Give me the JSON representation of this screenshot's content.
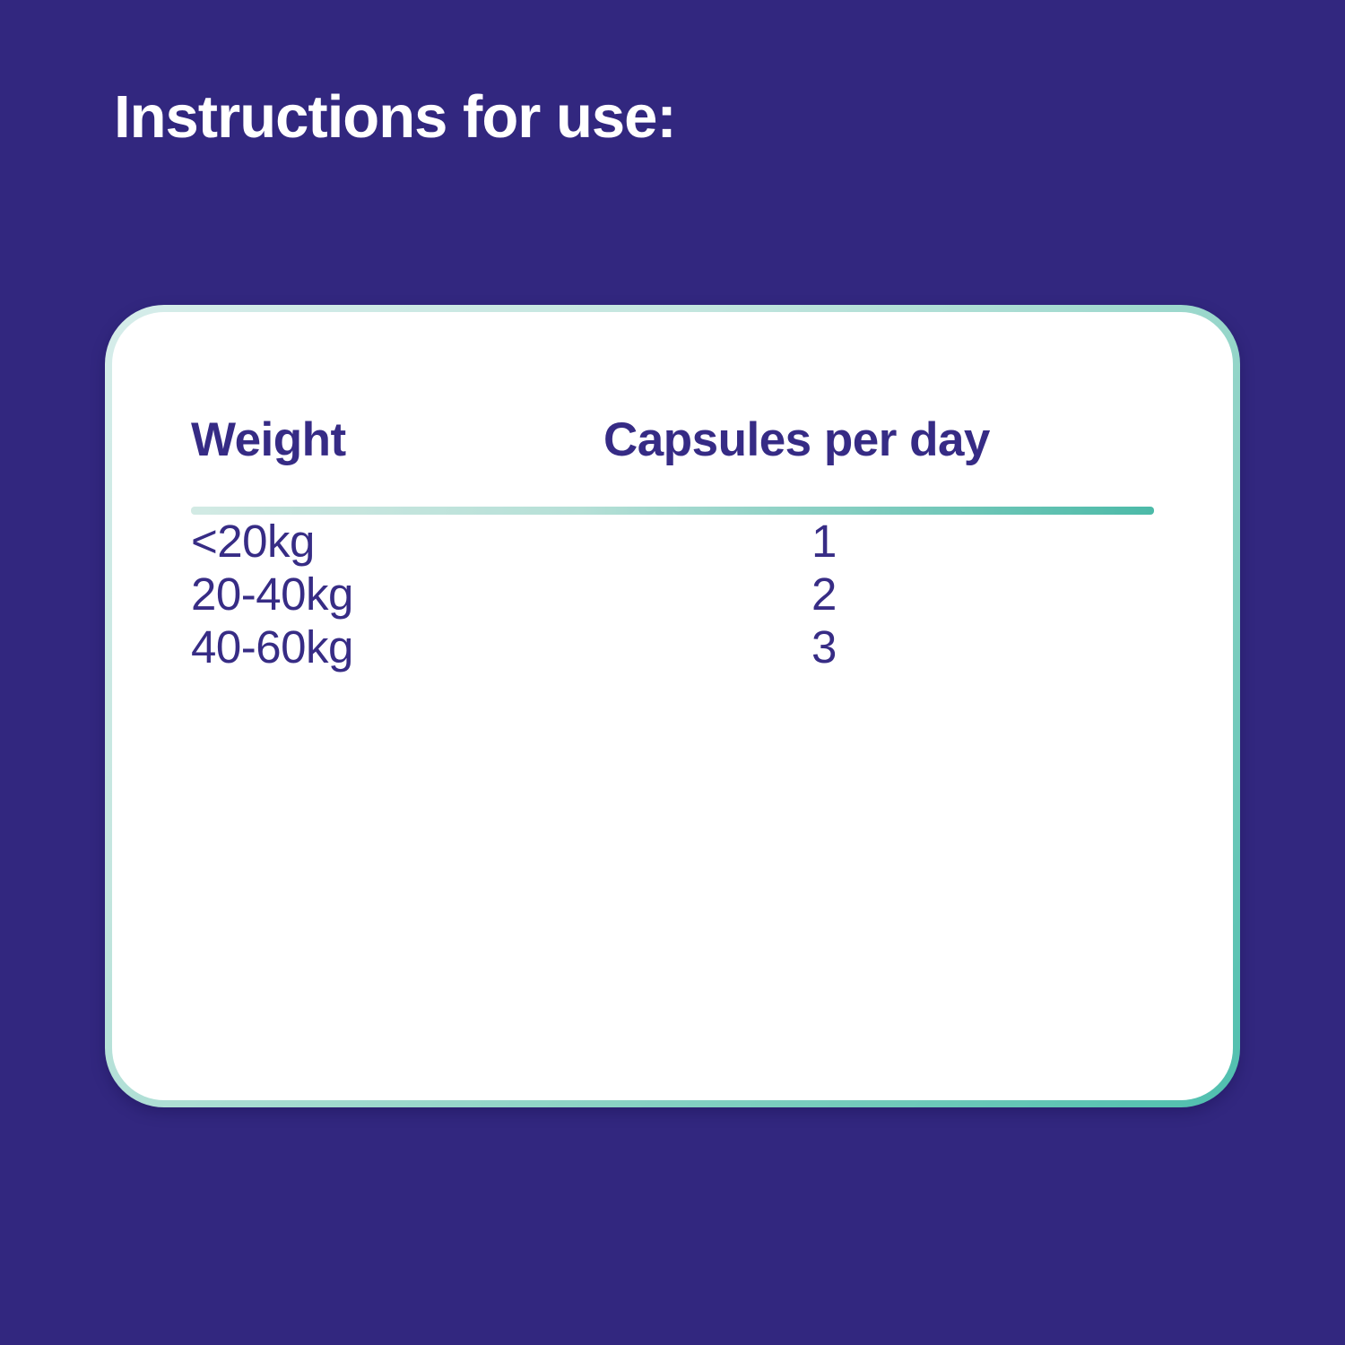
{
  "page": {
    "title": "Instructions for use:"
  },
  "colors": {
    "background": "#32277f",
    "card_background": "#ffffff",
    "text_indigo": "#372c85",
    "heading_white": "#ffffff",
    "border_gradient_start": "#d6edea",
    "border_gradient_end": "#4fbfae",
    "divider_gradient_start": "#d2eae4",
    "divider_gradient_end": "#4cbaa8"
  },
  "table": {
    "columns": {
      "weight": "Weight",
      "capsules": "Capsules per day"
    },
    "rows": [
      {
        "weight": "<20kg",
        "capsules": "1"
      },
      {
        "weight": "20-40kg",
        "capsules": "2"
      },
      {
        "weight": "40-60kg",
        "capsules": "3"
      }
    ]
  }
}
